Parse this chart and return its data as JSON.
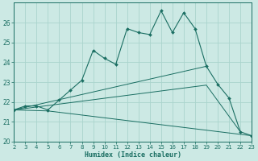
{
  "xlabel": "Humidex (Indice chaleur)",
  "background_color": "#cce9e4",
  "grid_color": "#aad4cd",
  "line_color": "#1a6e62",
  "xlim": [
    2,
    23
  ],
  "ylim": [
    20,
    27
  ],
  "xticks": [
    2,
    3,
    4,
    5,
    6,
    7,
    8,
    9,
    10,
    11,
    12,
    13,
    14,
    15,
    16,
    17,
    18,
    19,
    20,
    21,
    22,
    23
  ],
  "yticks": [
    20,
    21,
    22,
    23,
    24,
    25,
    26
  ],
  "main_x": [
    2,
    3,
    4,
    5,
    6,
    7,
    8,
    9,
    10,
    11,
    12,
    13,
    14,
    15,
    16,
    17,
    18,
    19,
    20,
    21,
    22,
    23
  ],
  "main_y": [
    21.6,
    21.8,
    21.8,
    21.6,
    22.1,
    22.6,
    23.1,
    24.6,
    24.2,
    23.9,
    25.7,
    25.5,
    25.4,
    26.6,
    25.5,
    26.5,
    25.7,
    23.8,
    22.9,
    22.2,
    20.5,
    20.3
  ],
  "line2_x": [
    2,
    19
  ],
  "line2_y": [
    21.6,
    23.8
  ],
  "line3_x": [
    2,
    19,
    22
  ],
  "line3_y": [
    21.6,
    22.85,
    20.5
  ],
  "line4_x": [
    2,
    5,
    23
  ],
  "line4_y": [
    21.6,
    21.55,
    20.3
  ]
}
